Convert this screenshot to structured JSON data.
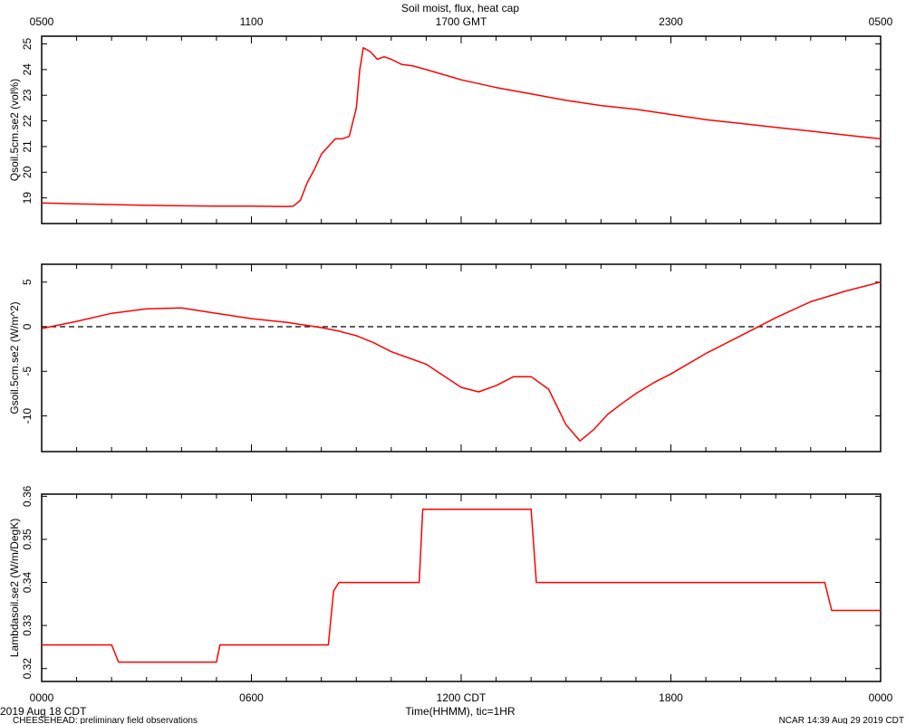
{
  "title": "Soil moist, flux, heat cap",
  "top_axis_ticks": [
    "0500",
    "1100",
    "1700 GMT",
    "2300",
    "0500"
  ],
  "bottom_axis_ticks": [
    "0000",
    "0600",
    "1200 CDT",
    "1800",
    "0000"
  ],
  "xlabel": "Time(HHMM), tic=1HR",
  "date_label": "2019 Aug 18 CDT",
  "footer_left": "CHEESEHEAD: preliminary field observations",
  "footer_right": "NCAR 14:39 Aug 29 2019 CDT",
  "colors": {
    "series": "#ff0000",
    "axes": "#000000"
  },
  "chart_data": [
    {
      "type": "line",
      "ylabel": "Qsoil.5cm.se2 (vol%)",
      "ylim": [
        18,
        25.3
      ],
      "yticks": [
        19,
        20,
        21,
        22,
        23,
        24,
        25
      ],
      "x_hours": [
        0,
        1,
        2,
        3,
        4,
        5,
        6,
        7,
        7.2,
        7.4,
        7.6,
        7.8,
        8.0,
        8.2,
        8.4,
        8.6,
        8.8,
        9.0,
        9.1,
        9.2,
        9.4,
        9.6,
        9.8,
        10.0,
        10.3,
        10.6,
        11,
        12,
        13,
        14,
        15,
        16,
        17,
        18,
        19,
        20,
        21,
        22,
        23,
        24
      ],
      "y": [
        18.8,
        18.77,
        18.74,
        18.71,
        18.69,
        18.68,
        18.68,
        18.66,
        18.68,
        18.9,
        19.6,
        20.1,
        20.7,
        21.0,
        21.3,
        21.3,
        21.4,
        22.5,
        24.0,
        24.85,
        24.7,
        24.4,
        24.5,
        24.4,
        24.2,
        24.15,
        24.0,
        23.6,
        23.3,
        23.05,
        22.8,
        22.6,
        22.45,
        22.25,
        22.05,
        21.9,
        21.75,
        21.6,
        21.45,
        21.3
      ]
    },
    {
      "type": "line",
      "ylabel": "Gsoil.5cm.se2 (W/m^2)",
      "ylim": [
        -14,
        7
      ],
      "yticks": [
        5,
        0,
        -5,
        -10
      ],
      "reference_line": 0,
      "x_hours": [
        0,
        1,
        2,
        3,
        4,
        5,
        6,
        7,
        8,
        8.5,
        9,
        9.5,
        10,
        10.5,
        11,
        11.5,
        12,
        12.5,
        13,
        13.5,
        14,
        14.5,
        15,
        15.4,
        15.8,
        16.2,
        16.6,
        17,
        17.5,
        18,
        19,
        20,
        21,
        22,
        23,
        24
      ],
      "y": [
        -0.2,
        0.6,
        1.5,
        2.0,
        2.1,
        1.5,
        0.9,
        0.5,
        -0.1,
        -0.5,
        -1.0,
        -1.8,
        -2.8,
        -3.5,
        -4.2,
        -5.5,
        -6.8,
        -7.3,
        -6.6,
        -5.6,
        -5.6,
        -7.0,
        -11.0,
        -12.8,
        -11.5,
        -9.8,
        -8.6,
        -7.5,
        -6.3,
        -5.3,
        -3.0,
        -1.0,
        1.0,
        2.8,
        4.0,
        5.0
      ]
    },
    {
      "type": "line",
      "ylabel": "Lambdasoil.se2 (W/m/DegK)",
      "ylim": [
        0.317,
        0.3605
      ],
      "yticks": [
        0.32,
        0.33,
        0.34,
        0.35,
        0.36
      ],
      "x_hours": [
        0,
        2.0,
        2.2,
        5.0,
        5.1,
        8.2,
        8.35,
        8.5,
        10.8,
        10.9,
        14.0,
        14.15,
        22.4,
        22.6,
        24
      ],
      "y": [
        0.3255,
        0.3255,
        0.3215,
        0.3215,
        0.3255,
        0.3255,
        0.338,
        0.34,
        0.34,
        0.357,
        0.357,
        0.34,
        0.34,
        0.3335,
        0.3335
      ]
    }
  ]
}
